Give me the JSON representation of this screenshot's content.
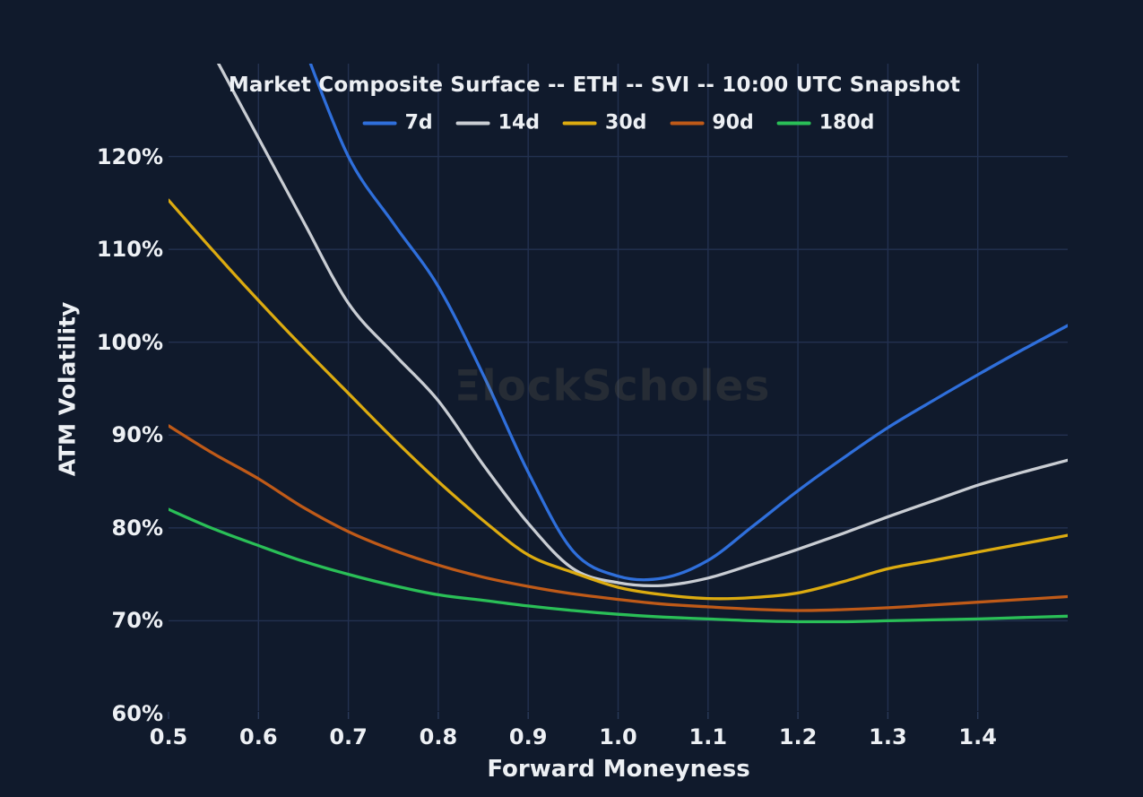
{
  "figure": {
    "watermark_logo": "Ξ",
    "watermark_text": "lockScholes"
  },
  "chart_data": {
    "type": "line",
    "title": "Market Composite Surface -- ETH -- SVI -- 10:00 UTC Snapshot",
    "xlabel": "Forward Moneyness",
    "ylabel": "ATM Volatility",
    "xlim": [
      0.5,
      1.5
    ],
    "ylim": [
      60,
      130
    ],
    "grid": true,
    "legend_position": "top",
    "x_ticks": [
      0.5,
      0.6,
      0.7,
      0.8,
      0.9,
      1.0,
      1.1,
      1.2,
      1.3,
      1.4
    ],
    "x_tick_labels": [
      "0.5",
      "0.6",
      "0.7",
      "0.8",
      "0.9",
      "1.0",
      "1.1",
      "1.2",
      "1.3",
      "1.4"
    ],
    "y_ticks": [
      60,
      70,
      80,
      90,
      100,
      110,
      120
    ],
    "y_tick_labels": [
      "60%",
      "70%",
      "80%",
      "90%",
      "100%",
      "110%",
      "120%"
    ],
    "series": [
      {
        "name": "7d",
        "color": "#2f6fdb",
        "points": [
          [
            0.65,
            132.0
          ],
          [
            0.7,
            120.0
          ],
          [
            0.75,
            112.8
          ],
          [
            0.8,
            106.0
          ],
          [
            0.85,
            96.5
          ],
          [
            0.9,
            86.0
          ],
          [
            0.95,
            77.5
          ],
          [
            1.0,
            74.8
          ],
          [
            1.05,
            74.6
          ],
          [
            1.1,
            76.5
          ],
          [
            1.15,
            80.2
          ],
          [
            1.2,
            84.0
          ],
          [
            1.25,
            87.5
          ],
          [
            1.3,
            90.8
          ],
          [
            1.35,
            93.7
          ],
          [
            1.4,
            96.5
          ],
          [
            1.45,
            99.2
          ],
          [
            1.5,
            101.8
          ]
        ]
      },
      {
        "name": "14d",
        "color": "#c9cdd3",
        "points": [
          [
            0.55,
            131.0
          ],
          [
            0.6,
            122.0
          ],
          [
            0.65,
            113.0
          ],
          [
            0.7,
            104.2
          ],
          [
            0.75,
            98.8
          ],
          [
            0.8,
            93.7
          ],
          [
            0.85,
            86.8
          ],
          [
            0.9,
            80.5
          ],
          [
            0.95,
            75.6
          ],
          [
            1.0,
            74.1
          ],
          [
            1.05,
            73.8
          ],
          [
            1.1,
            74.6
          ],
          [
            1.15,
            76.1
          ],
          [
            1.2,
            77.7
          ],
          [
            1.25,
            79.4
          ],
          [
            1.3,
            81.2
          ],
          [
            1.35,
            82.9
          ],
          [
            1.4,
            84.6
          ],
          [
            1.45,
            86.0
          ],
          [
            1.5,
            87.3
          ]
        ]
      },
      {
        "name": "30d",
        "color": "#dcab10",
        "points": [
          [
            0.5,
            115.3
          ],
          [
            0.55,
            109.8
          ],
          [
            0.6,
            104.5
          ],
          [
            0.65,
            99.4
          ],
          [
            0.7,
            94.5
          ],
          [
            0.75,
            89.6
          ],
          [
            0.8,
            85.0
          ],
          [
            0.85,
            80.8
          ],
          [
            0.9,
            77.1
          ],
          [
            0.95,
            75.2
          ],
          [
            1.0,
            73.6
          ],
          [
            1.05,
            72.8
          ],
          [
            1.1,
            72.4
          ],
          [
            1.15,
            72.5
          ],
          [
            1.2,
            73.0
          ],
          [
            1.25,
            74.2
          ],
          [
            1.3,
            75.6
          ],
          [
            1.35,
            76.5
          ],
          [
            1.4,
            77.4
          ],
          [
            1.45,
            78.3
          ],
          [
            1.5,
            79.2
          ]
        ]
      },
      {
        "name": "90d",
        "color": "#bf5a18",
        "points": [
          [
            0.5,
            91.0
          ],
          [
            0.55,
            88.0
          ],
          [
            0.6,
            85.3
          ],
          [
            0.65,
            82.2
          ],
          [
            0.7,
            79.6
          ],
          [
            0.75,
            77.6
          ],
          [
            0.8,
            76.0
          ],
          [
            0.85,
            74.7
          ],
          [
            0.9,
            73.7
          ],
          [
            0.95,
            72.9
          ],
          [
            1.0,
            72.3
          ],
          [
            1.05,
            71.8
          ],
          [
            1.1,
            71.5
          ],
          [
            1.15,
            71.25
          ],
          [
            1.2,
            71.1
          ],
          [
            1.25,
            71.2
          ],
          [
            1.3,
            71.4
          ],
          [
            1.35,
            71.7
          ],
          [
            1.4,
            72.0
          ],
          [
            1.45,
            72.3
          ],
          [
            1.5,
            72.6
          ]
        ]
      },
      {
        "name": "180d",
        "color": "#2abf57",
        "points": [
          [
            0.5,
            82.0
          ],
          [
            0.55,
            79.9
          ],
          [
            0.6,
            78.1
          ],
          [
            0.65,
            76.4
          ],
          [
            0.7,
            75.0
          ],
          [
            0.75,
            73.8
          ],
          [
            0.8,
            72.8
          ],
          [
            0.85,
            72.2
          ],
          [
            0.9,
            71.6
          ],
          [
            0.95,
            71.1
          ],
          [
            1.0,
            70.7
          ],
          [
            1.05,
            70.4
          ],
          [
            1.1,
            70.2
          ],
          [
            1.15,
            70.0
          ],
          [
            1.2,
            69.9
          ],
          [
            1.25,
            69.9
          ],
          [
            1.3,
            70.0
          ],
          [
            1.35,
            70.1
          ],
          [
            1.4,
            70.2
          ],
          [
            1.45,
            70.35
          ],
          [
            1.5,
            70.5
          ]
        ]
      }
    ]
  }
}
